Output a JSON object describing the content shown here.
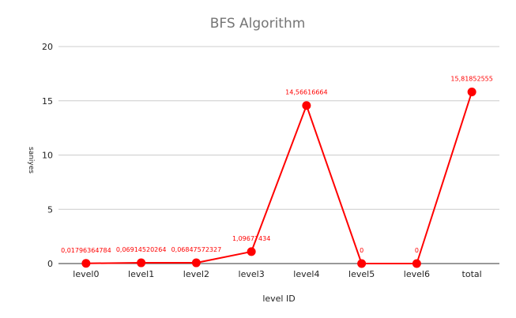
{
  "chart_data": {
    "type": "line",
    "title": "BFS Algorithm",
    "xlabel": "level ID",
    "ylabel": "saniyes",
    "categories": [
      "level0",
      "level1",
      "level2",
      "level3",
      "level4",
      "level5",
      "level6",
      "total"
    ],
    "series": [
      {
        "values": [
          0.01796364784,
          0.06914520264,
          0.06847572327,
          1.09677434,
          14.56616664,
          0,
          0,
          15.81852555
        ],
        "data_labels": [
          "0,01796364784",
          "0,06914520264",
          "0,06847572327",
          "1,09677434",
          "14,56616664",
          "0",
          "0",
          "15,81852555"
        ],
        "color": "#ff0000"
      }
    ],
    "ylim": [
      0,
      20
    ],
    "yticks": [
      0,
      5,
      10,
      15,
      20
    ],
    "grid": true,
    "legend": "none",
    "colors": {
      "series": "#ff0000",
      "grid": "#cccccc",
      "axis": "#333333",
      "title": "#757575",
      "text": "#222222"
    }
  }
}
